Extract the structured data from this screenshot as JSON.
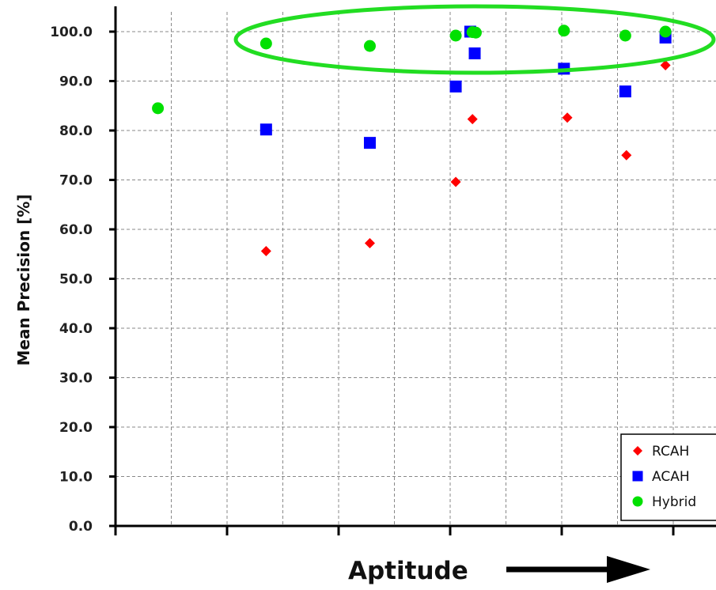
{
  "chart_data": {
    "type": "scatter",
    "title": "",
    "xlabel": "Aptitude",
    "ylabel": "Mean Precision [%]",
    "ylim": [
      0,
      100
    ],
    "yticks": [
      "0.0",
      "10.0",
      "20.0",
      "30.0",
      "40.0",
      "50.0",
      "60.0",
      "70.0",
      "80.0",
      "90.0",
      "100.0"
    ],
    "xlim": [
      0,
      5.2
    ],
    "xtick_labels": [],
    "grid": true,
    "legend_position": "bottom-right",
    "annotations": [
      "green ellipse around Hybrid points near 100%",
      "arrow pointing right after x-axis label"
    ],
    "series": [
      {
        "name": "RCAH",
        "marker": "diamond",
        "color": "#ff0000",
        "points": [
          {
            "x": 1.35,
            "y": 55.6
          },
          {
            "x": 2.28,
            "y": 57.2
          },
          {
            "x": 3.05,
            "y": 69.6
          },
          {
            "x": 3.2,
            "y": 82.3
          },
          {
            "x": 4.05,
            "y": 82.6
          },
          {
            "x": 4.58,
            "y": 75.0
          },
          {
            "x": 4.93,
            "y": 93.2
          }
        ]
      },
      {
        "name": "ACAH",
        "marker": "square",
        "color": "#0000ff",
        "points": [
          {
            "x": 1.35,
            "y": 80.2
          },
          {
            "x": 2.28,
            "y": 77.5
          },
          {
            "x": 3.05,
            "y": 88.9
          },
          {
            "x": 3.18,
            "y": 100.0
          },
          {
            "x": 3.22,
            "y": 95.6
          },
          {
            "x": 4.02,
            "y": 92.5
          },
          {
            "x": 4.57,
            "y": 87.9
          },
          {
            "x": 4.93,
            "y": 98.8
          }
        ]
      },
      {
        "name": "Hybrid",
        "marker": "circle",
        "color": "#00e000",
        "points": [
          {
            "x": 0.38,
            "y": 84.5
          },
          {
            "x": 1.35,
            "y": 97.6
          },
          {
            "x": 2.28,
            "y": 97.1
          },
          {
            "x": 3.05,
            "y": 99.2
          },
          {
            "x": 3.2,
            "y": 99.9
          },
          {
            "x": 3.23,
            "y": 99.8
          },
          {
            "x": 4.02,
            "y": 100.2
          },
          {
            "x": 4.57,
            "y": 99.2
          },
          {
            "x": 4.93,
            "y": 100.0
          }
        ]
      }
    ]
  },
  "colors": {
    "axis": "#000000",
    "grid": "#888888",
    "highlight": "#22dd22"
  }
}
